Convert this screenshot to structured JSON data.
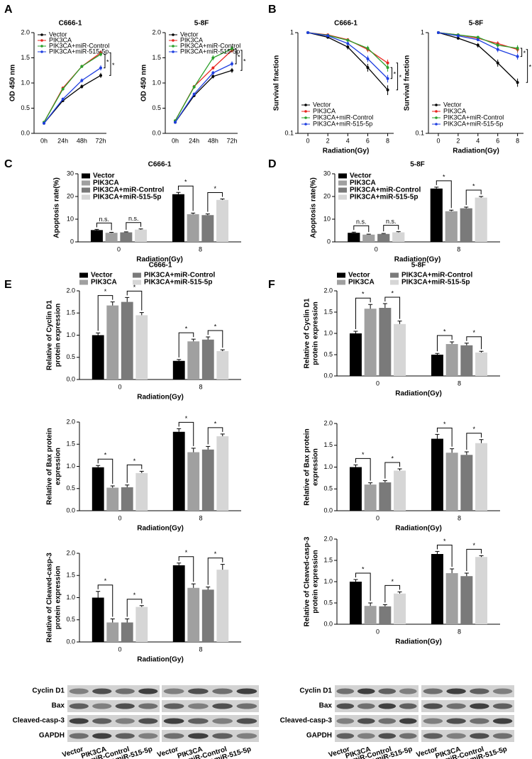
{
  "panel_labels": [
    "A",
    "B",
    "C",
    "D",
    "E",
    "F"
  ],
  "chart_data": [
    {
      "type": "line",
      "title": "C666-1",
      "categories": [
        "0h",
        "24h",
        "48h",
        "72h"
      ],
      "ylabel": "OD 450 nm",
      "ylim": [
        0,
        2
      ],
      "yticks": [
        {
          "value": 0,
          "label": "0.0"
        },
        0.5,
        {
          "value": 1,
          "label": "1.0"
        },
        1.5,
        {
          "value": 2,
          "label": "2.0"
        }
      ],
      "legend": "top-left",
      "series": [
        {
          "name": "Vector",
          "color": "#000000",
          "values": [
            0.2,
            0.65,
            0.93,
            1.15
          ],
          "errors": [
            0.02,
            0.03,
            0.04,
            0.05
          ]
        },
        {
          "name": "PIK3CA",
          "color": "#e8231e",
          "values": [
            0.22,
            0.9,
            1.33,
            1.6
          ],
          "errors": [
            0.02,
            0.03,
            0.03,
            0.05
          ]
        },
        {
          "name": "PIK3CA+miR-Control",
          "color": "#2ca02c",
          "values": [
            0.22,
            0.88,
            1.33,
            1.57
          ],
          "errors": [
            0.02,
            0.03,
            0.03,
            0.04
          ]
        },
        {
          "name": "PIK3CA+miR-515-5p",
          "color": "#1f3fe0",
          "values": [
            0.2,
            0.68,
            1.05,
            1.3
          ],
          "errors": [
            0.02,
            0.03,
            0.04,
            0.05
          ]
        }
      ],
      "brackets": [
        "*",
        "*"
      ]
    },
    {
      "type": "line",
      "title": "5-8F",
      "categories": [
        "0h",
        "24h",
        "48h",
        "72h"
      ],
      "ylabel": "OD 450 nm",
      "ylim": [
        0,
        2
      ],
      "yticks": [
        {
          "value": 0,
          "label": "0.0"
        },
        0.5,
        {
          "value": 1,
          "label": "1.0"
        },
        1.5,
        {
          "value": 2,
          "label": "2.0"
        }
      ],
      "legend": "top-left",
      "series": [
        {
          "name": "Vector",
          "color": "#000000",
          "values": [
            0.22,
            0.75,
            1.13,
            1.25
          ],
          "errors": [
            0.02,
            0.03,
            0.04,
            0.05
          ]
        },
        {
          "name": "PIK3CA",
          "color": "#e8231e",
          "values": [
            0.25,
            0.93,
            1.3,
            1.65
          ],
          "errors": [
            0.02,
            0.03,
            0.03,
            0.05
          ]
        },
        {
          "name": "PIK3CA+miR-Control",
          "color": "#2ca02c",
          "values": [
            0.25,
            0.92,
            1.5,
            1.68
          ],
          "errors": [
            0.02,
            0.03,
            0.05,
            0.05
          ]
        },
        {
          "name": "PIK3CA+miR-515-5p",
          "color": "#1f3fe0",
          "values": [
            0.22,
            0.78,
            1.2,
            1.38
          ],
          "errors": [
            0.02,
            0.03,
            0.04,
            0.05
          ]
        }
      ],
      "brackets": [
        "*",
        "*"
      ]
    },
    {
      "type": "line",
      "title": "C666-1",
      "x": [
        0,
        2,
        4,
        6,
        8
      ],
      "xlim": [
        -1,
        8.6
      ],
      "xticks": [
        0,
        2,
        4,
        6,
        8
      ],
      "xlabel": "Radiation(Gy)",
      "ylabel": "Survival fraction",
      "log_y": true,
      "ylim": [
        0.1,
        1
      ],
      "yticks": [
        0.1,
        1
      ],
      "legend": "bottom-left",
      "series": [
        {
          "name": "Vector",
          "color": "#000000",
          "values": [
            1,
            0.9,
            0.72,
            0.45,
            0.27
          ],
          "errors": [
            0,
            0.03,
            0.04,
            0.04,
            0.03
          ]
        },
        {
          "name": "PIK3CA",
          "color": "#e8231e",
          "values": [
            1,
            0.95,
            0.85,
            0.68,
            0.5
          ],
          "errors": [
            0,
            0.02,
            0.03,
            0.04,
            0.04
          ]
        },
        {
          "name": "PIK3CA+miR-Control",
          "color": "#2ca02c",
          "values": [
            1,
            0.94,
            0.84,
            0.7,
            0.45
          ],
          "errors": [
            0,
            0.02,
            0.03,
            0.04,
            0.04
          ]
        },
        {
          "name": "PIK3CA+miR-515-5p",
          "color": "#1f3fe0",
          "values": [
            1,
            0.93,
            0.78,
            0.55,
            0.35
          ],
          "errors": [
            0,
            0.02,
            0.03,
            0.04,
            0.03
          ]
        }
      ],
      "brackets": [
        "*",
        "*"
      ]
    },
    {
      "type": "line",
      "title": "5-8F",
      "x": [
        0,
        2,
        4,
        6,
        8
      ],
      "xlim": [
        -1,
        8.6
      ],
      "xticks": [
        0,
        2,
        4,
        6,
        8
      ],
      "xlabel": "Radiation(Gy)",
      "ylabel": "Survival fraction",
      "log_y": true,
      "ylim": [
        0.1,
        1
      ],
      "yticks": [
        0.1,
        1
      ],
      "legend": "bottom-left",
      "series": [
        {
          "name": "Vector",
          "color": "#000000",
          "values": [
            1,
            0.88,
            0.75,
            0.5,
            0.32
          ],
          "errors": [
            0,
            0.03,
            0.04,
            0.04,
            0.03
          ]
        },
        {
          "name": "PIK3CA",
          "color": "#e8231e",
          "values": [
            1,
            0.95,
            0.88,
            0.78,
            0.68
          ],
          "errors": [
            0,
            0.02,
            0.03,
            0.04,
            0.05
          ]
        },
        {
          "name": "PIK3CA+miR-Control",
          "color": "#2ca02c",
          "values": [
            1,
            0.95,
            0.9,
            0.75,
            0.7
          ],
          "errors": [
            0,
            0.02,
            0.03,
            0.04,
            0.05
          ]
        },
        {
          "name": "PIK3CA+miR-515-5p",
          "color": "#1f3fe0",
          "values": [
            1,
            0.93,
            0.85,
            0.68,
            0.58
          ],
          "errors": [
            0,
            0.02,
            0.03,
            0.04,
            0.04
          ]
        }
      ],
      "brackets": [
        "*",
        "*"
      ]
    },
    {
      "type": "bar",
      "title": "C666-1",
      "categories": [
        "0",
        "8"
      ],
      "xlabel": "Radiation(Gy)",
      "ylabel": "Apoptosis rate(%)",
      "ylim": [
        0,
        30
      ],
      "yticks": [
        0,
        10,
        20,
        30
      ],
      "legend": "top-left",
      "series": [
        {
          "name": "Vector",
          "color": "#000000",
          "values": [
            5.2,
            21
          ],
          "errors": [
            0.3,
            0.8
          ]
        },
        {
          "name": "PIK3CA",
          "color": "#a0a0a0",
          "values": [
            4,
            12.2
          ],
          "errors": [
            0.2,
            0.5
          ]
        },
        {
          "name": "PIK3CA+miR-Control",
          "color": "#7a7a7a",
          "values": [
            4.2,
            11.8
          ],
          "errors": [
            0.2,
            0.5
          ]
        },
        {
          "name": "PIK3CA+miR-515-5p",
          "color": "#d6d6d6",
          "values": [
            5.4,
            18.5
          ],
          "errors": [
            0.3,
            0.4
          ]
        }
      ],
      "brackets": [
        "n.s.",
        "n.s.",
        "*",
        "*"
      ]
    },
    {
      "type": "bar",
      "title": "5-8F",
      "categories": [
        "0",
        "8"
      ],
      "xlabel": "Radiation(Gy)",
      "ylabel": "Apoptosis rate(%)",
      "ylim": [
        0,
        30
      ],
      "yticks": [
        0,
        10,
        20,
        30
      ],
      "legend": "top-left",
      "series": [
        {
          "name": "Vector",
          "color": "#000000",
          "values": [
            4,
            23.5
          ],
          "errors": [
            0.3,
            0.6
          ]
        },
        {
          "name": "PIK3CA",
          "color": "#a0a0a0",
          "values": [
            3.2,
            13.5
          ],
          "errors": [
            0.2,
            0.5
          ]
        },
        {
          "name": "PIK3CA+miR-Control",
          "color": "#7a7a7a",
          "values": [
            3.5,
            14.8
          ],
          "errors": [
            0.2,
            0.5
          ]
        },
        {
          "name": "PIK3CA+miR-515-5p",
          "color": "#d6d6d6",
          "values": [
            4.2,
            19.5
          ],
          "errors": [
            0.3,
            0.5
          ]
        }
      ],
      "brackets": [
        "n.s.",
        "n.s.",
        "*",
        "*"
      ]
    },
    {
      "type": "bar",
      "title": "C666-1",
      "categories": [
        "0",
        "8"
      ],
      "xlabel": "Radiation(Gy)",
      "ylabel": [
        "Relative of Cyclin D1",
        "protein expression"
      ],
      "ylim": [
        0,
        2
      ],
      "yticks": [
        {
          "value": 0,
          "label": "0.0"
        },
        0.5,
        {
          "value": 1,
          "label": "1.0"
        },
        1.5,
        {
          "value": 2,
          "label": "2.0"
        }
      ],
      "legend": "top",
      "series": [
        {
          "name": "Vector",
          "color": "#000000",
          "values": [
            1,
            0.42
          ],
          "errors": [
            0.05,
            0.03
          ]
        },
        {
          "name": "PIK3CA",
          "color": "#a0a0a0",
          "values": [
            1.67,
            0.86
          ],
          "errors": [
            0.08,
            0.05
          ]
        },
        {
          "name": "PIK3CA+miR-Control",
          "color": "#7a7a7a",
          "values": [
            1.75,
            0.9
          ],
          "errors": [
            0.1,
            0.06
          ]
        },
        {
          "name": "PIK3CA+miR-515-5p",
          "color": "#d6d6d6",
          "values": [
            1.45,
            0.64
          ],
          "errors": [
            0.06,
            0.03
          ]
        }
      ],
      "brackets": [
        "*",
        "*",
        "*",
        "*"
      ]
    },
    {
      "type": "bar",
      "categories": [
        "0",
        "8"
      ],
      "xlabel": "Radiation(Gy)",
      "ylabel": [
        "Relative of Bax protein",
        "expression"
      ],
      "ylim": [
        0,
        2
      ],
      "yticks": [
        {
          "value": 0,
          "label": "0.0"
        },
        0.5,
        {
          "value": 1,
          "label": "1.0"
        },
        1.5,
        {
          "value": 2,
          "label": "2.0"
        }
      ],
      "series": [
        {
          "name": "Vector",
          "color": "#000000",
          "values": [
            0.98,
            1.78
          ],
          "errors": [
            0.04,
            0.07
          ]
        },
        {
          "name": "PIK3CA",
          "color": "#a0a0a0",
          "values": [
            0.52,
            1.32
          ],
          "errors": [
            0.04,
            0.09
          ]
        },
        {
          "name": "PIK3CA+miR-Control",
          "color": "#7a7a7a",
          "values": [
            0.53,
            1.38
          ],
          "errors": [
            0.05,
            0.07
          ]
        },
        {
          "name": "PIK3CA+miR-515-5p",
          "color": "#d6d6d6",
          "values": [
            0.85,
            1.68
          ],
          "errors": [
            0.04,
            0.05
          ]
        }
      ],
      "brackets": [
        "*",
        "*",
        "*",
        "*"
      ]
    },
    {
      "type": "bar",
      "categories": [
        "0",
        "8"
      ],
      "xlabel": "Radiation(Gy)",
      "ylabel": [
        "Relative of Cleaved-casp-3",
        "protein expression"
      ],
      "ylim": [
        0,
        2
      ],
      "yticks": [
        {
          "value": 0,
          "label": "0.0"
        },
        0.5,
        {
          "value": 1,
          "label": "1.0"
        },
        1.5,
        {
          "value": 2,
          "label": "2.0"
        }
      ],
      "series": [
        {
          "name": "Vector",
          "color": "#000000",
          "values": [
            1,
            1.73
          ],
          "errors": [
            0.14,
            0.05
          ]
        },
        {
          "name": "PIK3CA",
          "color": "#a0a0a0",
          "values": [
            0.44,
            1.22
          ],
          "errors": [
            0.08,
            0.09
          ]
        },
        {
          "name": "PIK3CA+miR-Control",
          "color": "#7a7a7a",
          "values": [
            0.44,
            1.18
          ],
          "errors": [
            0.08,
            0.06
          ]
        },
        {
          "name": "PIK3CA+miR-515-5p",
          "color": "#d6d6d6",
          "values": [
            0.79,
            1.63
          ],
          "errors": [
            0.03,
            0.12
          ]
        }
      ],
      "brackets": [
        "*",
        "*",
        "*",
        "*"
      ]
    },
    {
      "type": "bar",
      "title": "5-8F",
      "categories": [
        "0",
        "8"
      ],
      "xlabel": "Radiation(Gy)",
      "ylabel": [
        "Relative of Cyclin D1",
        "protein expression"
      ],
      "ylim": [
        0,
        2
      ],
      "yticks": [
        {
          "value": 0,
          "label": "0.0"
        },
        0.5,
        {
          "value": 1,
          "label": "1.0"
        },
        1.5,
        {
          "value": 2,
          "label": "2.0"
        }
      ],
      "legend": "top",
      "series": [
        {
          "name": "Vector",
          "color": "#000000",
          "values": [
            1,
            0.5
          ],
          "errors": [
            0.05,
            0.03
          ]
        },
        {
          "name": "PIK3CA",
          "color": "#a0a0a0",
          "values": [
            1.58,
            0.75
          ],
          "errors": [
            0.1,
            0.05
          ]
        },
        {
          "name": "PIK3CA+miR-Control",
          "color": "#7a7a7a",
          "values": [
            1.6,
            0.72
          ],
          "errors": [
            0.1,
            0.05
          ]
        },
        {
          "name": "PIK3CA+miR-515-5p",
          "color": "#d6d6d6",
          "values": [
            1.22,
            0.55
          ],
          "errors": [
            0.07,
            0.03
          ]
        }
      ],
      "brackets": [
        "*",
        "*",
        "*",
        "*"
      ]
    },
    {
      "type": "bar",
      "categories": [
        "0",
        "8"
      ],
      "xlabel": "Radiation(Gy)",
      "ylabel": [
        "Relative of Bax protein",
        "expression"
      ],
      "ylim": [
        0,
        2
      ],
      "yticks": [
        {
          "value": 0,
          "label": "0.0"
        },
        0.5,
        {
          "value": 1,
          "label": "1.0"
        },
        1.5,
        {
          "value": 2,
          "label": "2.0"
        }
      ],
      "series": [
        {
          "name": "Vector",
          "color": "#000000",
          "values": [
            1,
            1.65
          ],
          "errors": [
            0.05,
            0.1
          ]
        },
        {
          "name": "PIK3CA",
          "color": "#a0a0a0",
          "values": [
            0.6,
            1.33
          ],
          "errors": [
            0.04,
            0.09
          ]
        },
        {
          "name": "PIK3CA+miR-Control",
          "color": "#7a7a7a",
          "values": [
            0.65,
            1.28
          ],
          "errors": [
            0.04,
            0.07
          ]
        },
        {
          "name": "PIK3CA+miR-515-5p",
          "color": "#d6d6d6",
          "values": [
            0.92,
            1.55
          ],
          "errors": [
            0.04,
            0.08
          ]
        }
      ],
      "brackets": [
        "*",
        "*",
        "*",
        "*"
      ]
    },
    {
      "type": "bar",
      "categories": [
        "0",
        "8"
      ],
      "xlabel": "Radiation(Gy)",
      "ylabel": [
        "Relative of Cleaved-casp-3",
        "protein expression"
      ],
      "ylim": [
        0,
        2
      ],
      "yticks": [
        {
          "value": 0,
          "label": "0.0"
        },
        0.5,
        {
          "value": 1,
          "label": "1.0"
        },
        1.5,
        {
          "value": 2,
          "label": "2.0"
        }
      ],
      "series": [
        {
          "name": "Vector",
          "color": "#000000",
          "values": [
            1,
            1.65
          ],
          "errors": [
            0.05,
            0.06
          ]
        },
        {
          "name": "PIK3CA",
          "color": "#a0a0a0",
          "values": [
            0.43,
            1.2
          ],
          "errors": [
            0.07,
            0.1
          ]
        },
        {
          "name": "PIK3CA+miR-Control",
          "color": "#7a7a7a",
          "values": [
            0.42,
            1.13
          ],
          "errors": [
            0.04,
            0.07
          ]
        },
        {
          "name": "PIK3CA+miR-515-5p",
          "color": "#d6d6d6",
          "values": [
            0.72,
            1.58
          ],
          "errors": [
            0.04,
            0.03
          ]
        }
      ],
      "brackets": [
        "*",
        "*",
        "*",
        "*"
      ]
    }
  ],
  "blots": [
    {
      "rows": [
        "Cyclin D1",
        "Bax",
        "Cleaved-casp-3",
        "GAPDH"
      ],
      "lanes": [
        "Vector",
        "PIK3CA",
        "PIK3CA+miR-Control",
        "PIK3CA+miR-515-5p",
        "Vector",
        "PIK3CA",
        "PIK3CA+miR-Control",
        "PIK3CA+miR-515-5p"
      ]
    },
    {
      "rows": [
        "Cyclin D1",
        "Bax",
        "Cleaved-casp-3",
        "GAPDH"
      ],
      "lanes": [
        "Vector",
        "PIK3CA",
        "PIK3CA+miR-Control",
        "PIK3CA+miR-515-5p",
        "Vector",
        "PIK3CA",
        "PIK3CA+miR-Control",
        "PIK3CA+miR-515-5p"
      ]
    }
  ]
}
